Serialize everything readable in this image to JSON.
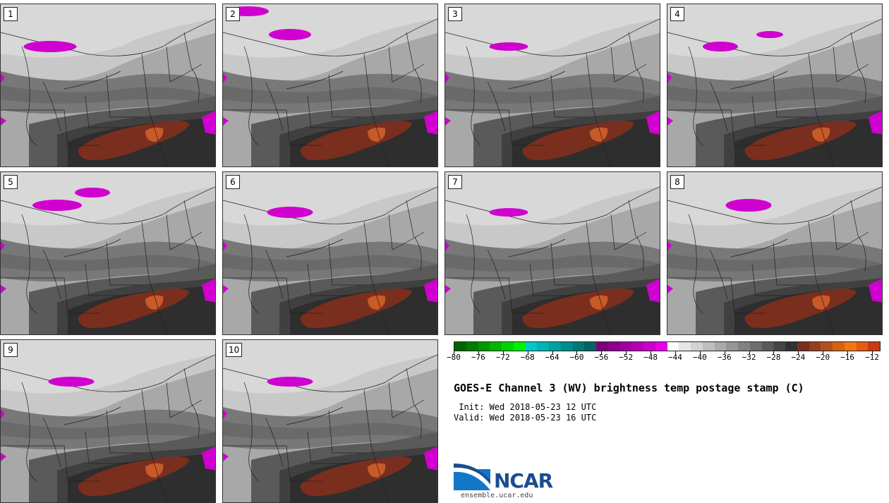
{
  "panels": [
    {
      "label": "1"
    },
    {
      "label": "2"
    },
    {
      "label": "3"
    },
    {
      "label": "4"
    },
    {
      "label": "5"
    },
    {
      "label": "6"
    },
    {
      "label": "7"
    },
    {
      "label": "8"
    },
    {
      "label": "9"
    },
    {
      "label": "10"
    }
  ],
  "colorbar": {
    "colors": [
      "#006400",
      "#007d00",
      "#009600",
      "#00b400",
      "#00d200",
      "#00f000",
      "#00c8c8",
      "#00b4b4",
      "#00a0a0",
      "#008c8c",
      "#007878",
      "#006464",
      "#780078",
      "#8c008c",
      "#a000a0",
      "#b400b4",
      "#c800c8",
      "#e600e6",
      "#ffffff",
      "#e6e6e6",
      "#d2d2d2",
      "#bebebe",
      "#aaaaaa",
      "#969696",
      "#828282",
      "#6e6e6e",
      "#5a5a5a",
      "#464646",
      "#323232",
      "#7a2e1e",
      "#964020",
      "#b45020",
      "#d26414",
      "#f07814",
      "#e65a14",
      "#c83c14"
    ],
    "ticks": [
      "−80",
      "−76",
      "−72",
      "−68",
      "−64",
      "−60",
      "−56",
      "−52",
      "−48",
      "−44",
      "−40",
      "−36",
      "−32",
      "−28",
      "−24",
      "−20",
      "−16",
      "−12"
    ]
  },
  "title": "GOES-E Channel 3 (WV) brightness temp postage stamp (C)",
  "init": " Init: Wed 2018-05-23 12 UTC",
  "valid": "Valid: Wed 2018-05-23 16 UTC",
  "logo_text": "NCAR",
  "site": "ensemble.ucar.edu"
}
